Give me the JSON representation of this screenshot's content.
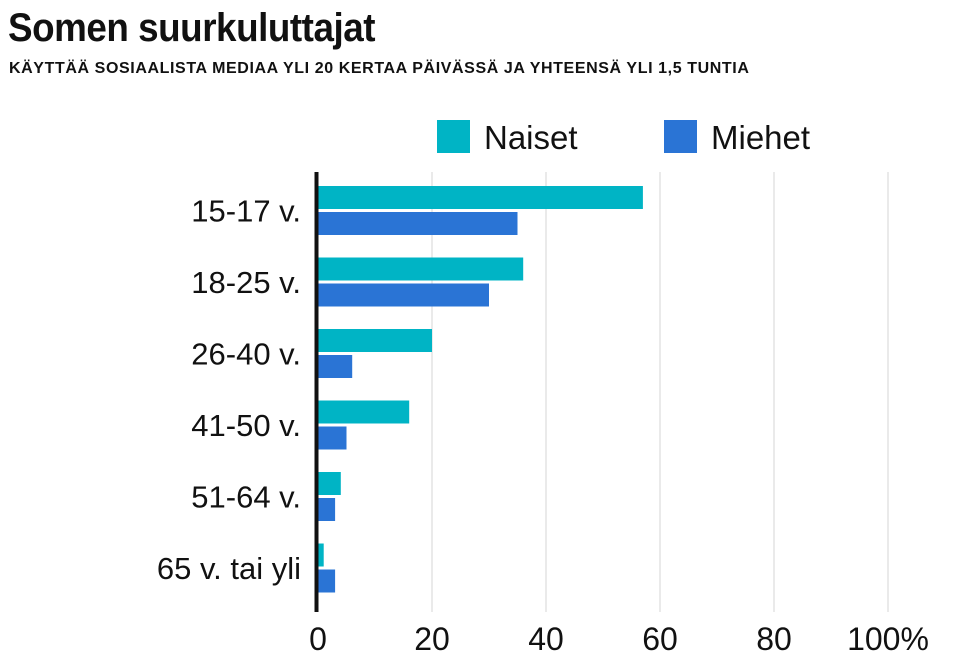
{
  "chart_data": {
    "type": "bar",
    "orientation": "horizontal",
    "title": "Somen suurkuluttajat",
    "subtitle": "KÄYTTÄÄ SOSIAALISTA MEDIAA YLI 20 KERTAA PÄIVÄSSÄ JA YHTEENSÄ YLI 1,5 TUNTIA",
    "categories": [
      "15-17 v.",
      "18-25 v.",
      "26-40 v.",
      "41-50 v.",
      "51-64 v.",
      "65 v. tai yli"
    ],
    "series": [
      {
        "name": "Naiset",
        "color": "#00b4c5",
        "values": [
          57,
          36,
          20,
          16,
          4,
          1
        ]
      },
      {
        "name": "Miehet",
        "color": "#2a74d5",
        "values": [
          35,
          30,
          6,
          5,
          3,
          3
        ]
      }
    ],
    "xlim": [
      0,
      100
    ],
    "xticks": [
      "0",
      "20",
      "40",
      "60",
      "80",
      "100%"
    ],
    "grid": true,
    "legend": "top"
  }
}
